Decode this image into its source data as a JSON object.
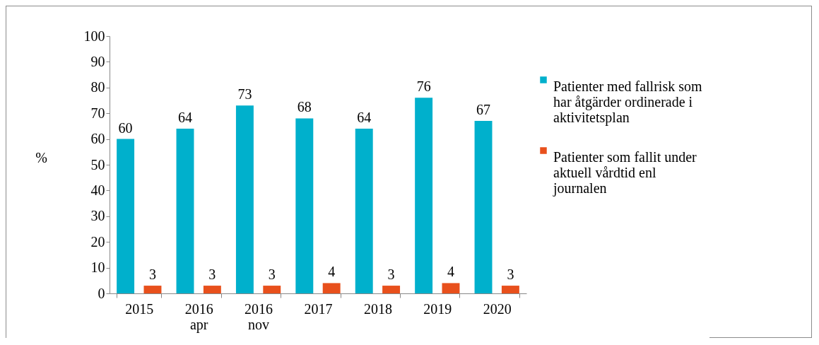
{
  "chart_data": {
    "type": "bar",
    "ylabel": "%",
    "categories": [
      "2015",
      "2016 apr",
      "2016 nov",
      "2017",
      "2018",
      "2019",
      "2020"
    ],
    "series": [
      {
        "name": "Patienter med fallrisk som har åtgärder ordinerade i aktivitetsplan",
        "color": "#00b0cc",
        "values": [
          60,
          64,
          73,
          68,
          64,
          76,
          67
        ]
      },
      {
        "name": "Patienter som fallit under aktuell vårdtid enl journalen",
        "color": "#e8501c",
        "values": [
          3,
          3,
          3,
          4,
          3,
          4,
          3
        ]
      }
    ],
    "ylim": [
      0,
      100
    ],
    "yticks": [
      0,
      10,
      20,
      30,
      40,
      50,
      60,
      70,
      80,
      90,
      100
    ],
    "grid": false,
    "legend": "right",
    "data_labels": true
  }
}
